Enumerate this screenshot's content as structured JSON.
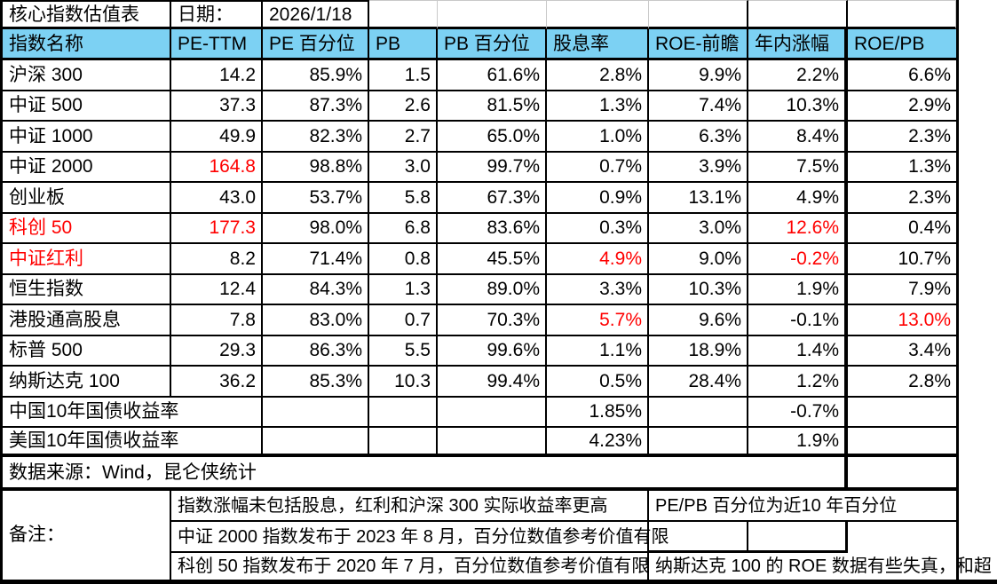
{
  "title_row": {
    "title": "核心指数估值表",
    "date_label": "日期：",
    "date_value": "2026/1/18"
  },
  "header": {
    "columns": [
      "指数名称",
      "PE-TTM",
      "PE 百分位",
      "PB",
      "PB 百分位",
      "股息率",
      "ROE-前瞻",
      "年内涨幅",
      "ROE/PB"
    ]
  },
  "index_rows": [
    {
      "name": "沪深 300",
      "name_red": false,
      "values": [
        "14.2",
        "85.9%",
        "1.5",
        "61.6%",
        "2.8%",
        "9.9%",
        "2.2%",
        "6.6%"
      ],
      "red": []
    },
    {
      "name": "中证 500",
      "name_red": false,
      "values": [
        "37.3",
        "87.3%",
        "2.6",
        "81.5%",
        "1.3%",
        "7.4%",
        "10.3%",
        "2.9%"
      ],
      "red": []
    },
    {
      "name": "中证 1000",
      "name_red": false,
      "values": [
        "49.9",
        "82.3%",
        "2.7",
        "65.0%",
        "1.0%",
        "6.3%",
        "8.4%",
        "2.3%"
      ],
      "red": []
    },
    {
      "name": "中证 2000",
      "name_red": false,
      "values": [
        "164.8",
        "98.8%",
        "3.0",
        "99.7%",
        "0.7%",
        "3.9%",
        "7.5%",
        "1.3%"
      ],
      "red": [
        0
      ]
    },
    {
      "name": "创业板",
      "name_red": false,
      "values": [
        "43.0",
        "53.7%",
        "5.8",
        "67.3%",
        "0.9%",
        "13.1%",
        "4.9%",
        "2.3%"
      ],
      "red": []
    },
    {
      "name": "科创 50",
      "name_red": true,
      "values": [
        "177.3",
        "98.0%",
        "6.8",
        "83.6%",
        "0.3%",
        "3.0%",
        "12.6%",
        "0.4%"
      ],
      "red": [
        0,
        6
      ]
    },
    {
      "name": "中证红利",
      "name_red": true,
      "values": [
        "8.2",
        "71.4%",
        "0.8",
        "45.5%",
        "4.9%",
        "9.0%",
        "-0.2%",
        "10.7%"
      ],
      "red": [
        4,
        6
      ]
    },
    {
      "name": "恒生指数",
      "name_red": false,
      "values": [
        "12.4",
        "84.3%",
        "1.3",
        "89.0%",
        "3.3%",
        "10.3%",
        "1.9%",
        "7.9%"
      ],
      "red": []
    },
    {
      "name": "港股通高股息",
      "name_red": false,
      "values": [
        "7.8",
        "83.0%",
        "0.7",
        "70.3%",
        "5.7%",
        "9.6%",
        "-0.1%",
        "13.0%"
      ],
      "red": [
        4,
        7
      ]
    },
    {
      "name": "标普 500",
      "name_red": false,
      "values": [
        "29.3",
        "86.3%",
        "5.5",
        "99.6%",
        "1.1%",
        "18.9%",
        "1.4%",
        "3.4%"
      ],
      "red": []
    },
    {
      "name": "纳斯达克 100",
      "name_red": false,
      "values": [
        "36.2",
        "85.3%",
        "10.3",
        "99.4%",
        "0.5%",
        "28.4%",
        "1.2%",
        "2.8%"
      ],
      "red": []
    }
  ],
  "bond_rows": [
    {
      "name": "中国10年国债收益率",
      "dividend_yield": "1.85%",
      "ytd_change": "-0.7%"
    },
    {
      "name": "美国10年国债收益率",
      "dividend_yield": "4.23%",
      "ytd_change": "1.9%"
    }
  ],
  "source_row": {
    "text": "数据来源：Wind，昆仑侠统计"
  },
  "remarks": {
    "label": "备注：",
    "rows": [
      {
        "main": "指数涨幅未包括股息，红利和沪深 300 实际收益率更高",
        "side": "PE/PB 百分位为近10 年百分位"
      },
      {
        "main": "中证 2000 指数发布于 2023 年 8 月，百分位数值参考价值有限",
        "side": ""
      },
      {
        "main": "科创 50 指数发布于 2020 年 7 月，百分位数值参考价值有限",
        "side": "纳斯达克 100 的 ROE 数据有些失真，和超"
      }
    ]
  },
  "colors": {
    "header_bg": "#7CD1F3",
    "alert_red": "#FF0000",
    "grid": "#000000",
    "light_grid": "#C9C9C9"
  }
}
